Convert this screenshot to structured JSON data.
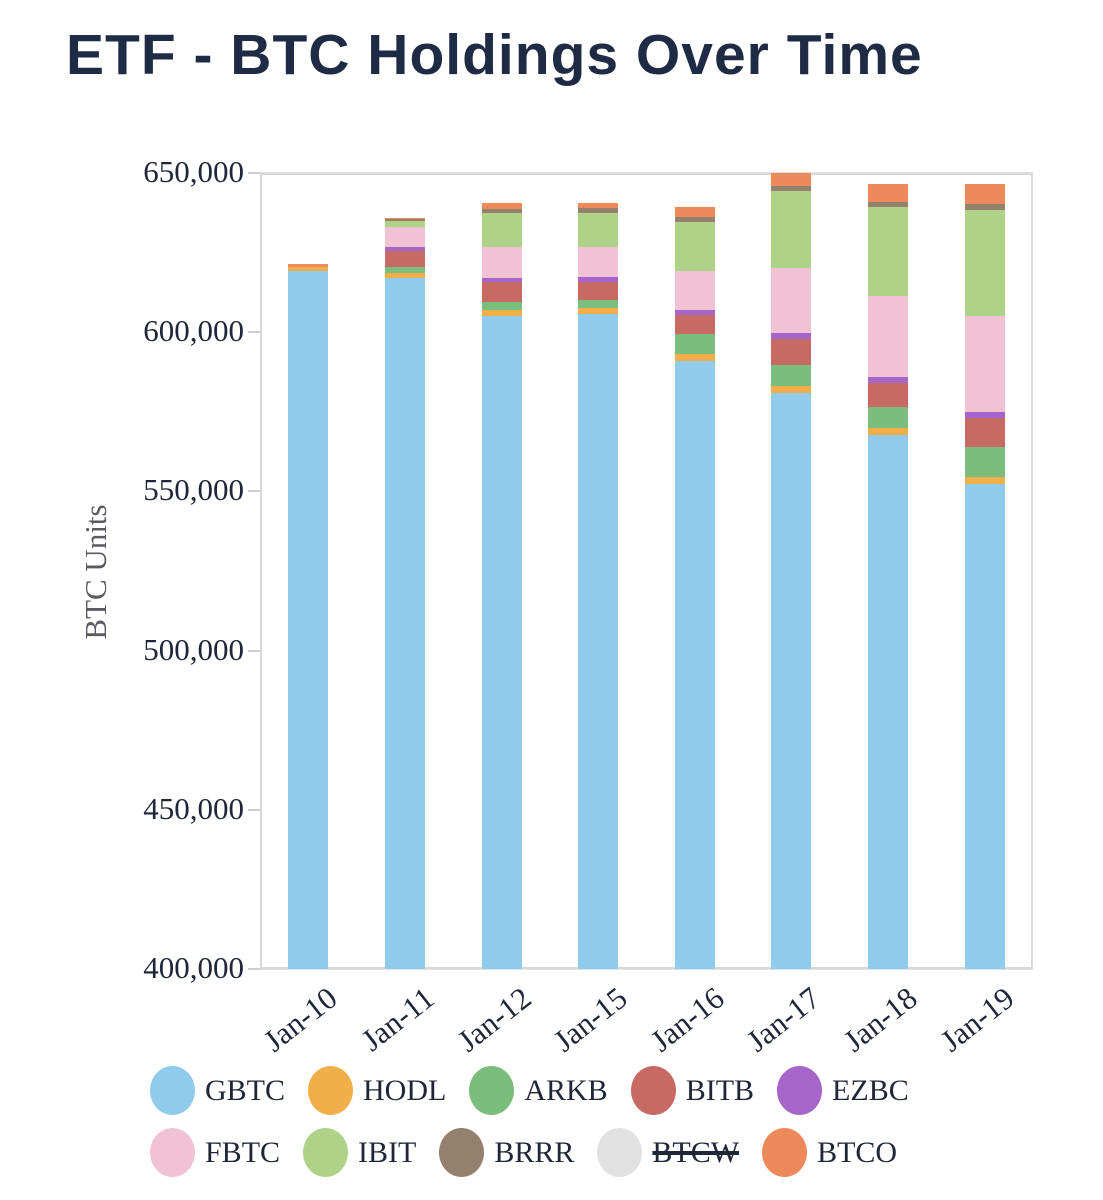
{
  "title": "ETF - BTC Holdings Over Time",
  "chart_data": {
    "type": "bar",
    "stacked": true,
    "title": "ETF - BTC Holdings Over Time",
    "xlabel": "",
    "ylabel": "BTC Units",
    "ylim": [
      400000,
      650000
    ],
    "ytick_step": 50000,
    "yticks": [
      {
        "value": 400000,
        "label": "400,000"
      },
      {
        "value": 450000,
        "label": "450,000"
      },
      {
        "value": 500000,
        "label": "500,000"
      },
      {
        "value": 550000,
        "label": "550,000"
      },
      {
        "value": 600000,
        "label": "600,000"
      },
      {
        "value": 650000,
        "label": "650,000"
      }
    ],
    "grid": true,
    "legend_position": "bottom",
    "categories": [
      "Jan-10",
      "Jan-11",
      "Jan-12",
      "Jan-15",
      "Jan-16",
      "Jan-17",
      "Jan-18",
      "Jan-19"
    ],
    "series": [
      {
        "name": "GBTC",
        "color": "#90CBEB",
        "values": [
          619200,
          616900,
          605200,
          605600,
          591100,
          580800,
          567700,
          552300
        ]
      },
      {
        "name": "HODL",
        "color": "#F1AF4B",
        "values": [
          1300,
          1800,
          1800,
          1900,
          2200,
          2300,
          2100,
          2300
        ]
      },
      {
        "name": "ARKB",
        "color": "#7ABD7C",
        "values": [
          0,
          1900,
          2500,
          2500,
          6000,
          6600,
          6600,
          9400
        ]
      },
      {
        "name": "BITB",
        "color": "#C66A63",
        "values": [
          0,
          5000,
          6300,
          5700,
          6000,
          8200,
          7500,
          9200
        ]
      },
      {
        "name": "EZBC",
        "color": "#A565C9",
        "values": [
          0,
          1300,
          1300,
          1600,
          1600,
          2000,
          1900,
          1800
        ]
      },
      {
        "name": "FBTC",
        "color": "#F1C2D4",
        "values": [
          0,
          6100,
          9700,
          9400,
          12300,
          20200,
          25500,
          30100
        ]
      },
      {
        "name": "IBIT",
        "color": "#AED287",
        "values": [
          0,
          1900,
          10700,
          10700,
          15400,
          24400,
          27900,
          33200
        ]
      },
      {
        "name": "BRRR",
        "color": "#95806E",
        "values": [
          0,
          700,
          1300,
          1600,
          1600,
          1500,
          1800,
          2100
        ]
      },
      {
        "name": "BTCO",
        "color": "#EE8A5A",
        "values": [
          900,
          400,
          1900,
          1600,
          3100,
          4000,
          5600,
          6300
        ]
      }
    ]
  },
  "legend": {
    "rows": [
      [
        {
          "label": "GBTC",
          "color": "#90CBEB",
          "struck": false
        },
        {
          "label": "HODL",
          "color": "#F1AF4B",
          "struck": false
        },
        {
          "label": "ARKB",
          "color": "#7ABD7C",
          "struck": false
        },
        {
          "label": "BITB",
          "color": "#C66A63",
          "struck": false
        },
        {
          "label": "EZBC",
          "color": "#A565C9",
          "struck": false
        }
      ],
      [
        {
          "label": "FBTC",
          "color": "#F1C2D4",
          "struck": false
        },
        {
          "label": "IBIT",
          "color": "#AED287",
          "struck": false
        },
        {
          "label": "BRRR",
          "color": "#95806E",
          "struck": false
        },
        {
          "label": "BTCW",
          "color": "#E1E1E1",
          "struck": true
        },
        {
          "label": "BTCO",
          "color": "#EE8A5A",
          "struck": false
        }
      ]
    ]
  },
  "colors": {
    "title": "#1F2A44",
    "tick_label": "#1F2638",
    "axis_title": "#5A5B63",
    "gridline": "#E2E2E2",
    "frame": "#D8D8D8",
    "background": "#FFFFFF"
  }
}
